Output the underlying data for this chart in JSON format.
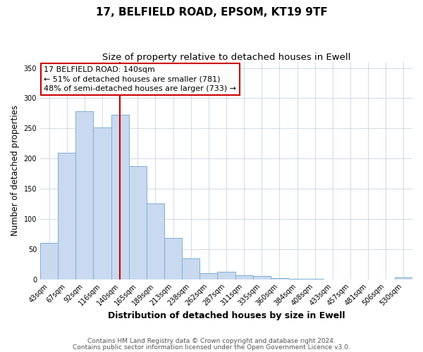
{
  "title": "17, BELFIELD ROAD, EPSOM, KT19 9TF",
  "subtitle": "Size of property relative to detached houses in Ewell",
  "xlabel": "Distribution of detached houses by size in Ewell",
  "ylabel": "Number of detached properties",
  "bar_labels": [
    "43sqm",
    "67sqm",
    "92sqm",
    "116sqm",
    "140sqm",
    "165sqm",
    "189sqm",
    "213sqm",
    "238sqm",
    "262sqm",
    "287sqm",
    "311sqm",
    "335sqm",
    "360sqm",
    "384sqm",
    "408sqm",
    "433sqm",
    "457sqm",
    "481sqm",
    "506sqm",
    "530sqm"
  ],
  "bar_values": [
    60,
    210,
    278,
    252,
    272,
    187,
    126,
    68,
    35,
    10,
    13,
    7,
    5,
    2,
    1,
    1,
    0,
    0,
    0,
    0,
    3
  ],
  "bar_color": "#c9d9ef",
  "bar_edge_color": "#7bafd4",
  "ylim": [
    0,
    360
  ],
  "yticks": [
    0,
    50,
    100,
    150,
    200,
    250,
    300,
    350
  ],
  "vline_x_index": 4,
  "vline_color": "#cc0000",
  "annotation_line1": "17 BELFIELD ROAD: 140sqm",
  "annotation_line2": "← 51% of detached houses are smaller (781)",
  "annotation_line3": "48% of semi-detached houses are larger (733) →",
  "footer1": "Contains HM Land Registry data © Crown copyright and database right 2024.",
  "footer2": "Contains public sector information licensed under the Open Government Licence v3.0.",
  "background_color": "#ffffff",
  "grid_color": "#c8d4e3",
  "title_fontsize": 11,
  "subtitle_fontsize": 9.5,
  "xlabel_fontsize": 9,
  "ylabel_fontsize": 8.5,
  "tick_fontsize": 7,
  "annotation_fontsize": 8,
  "footer_fontsize": 6.5
}
